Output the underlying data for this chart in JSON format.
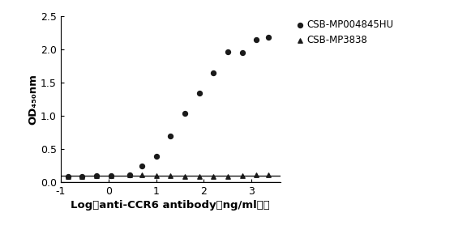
{
  "title": "",
  "xlabel": "Log（anti-CCR6 antibody（ng/ml））",
  "ylabel": "OD₄₅₀nm",
  "xlim": [
    -1,
    3.6
  ],
  "ylim": [
    0,
    2.5
  ],
  "xticks": [
    -1,
    0,
    1,
    2,
    3
  ],
  "yticks": [
    0.0,
    0.5,
    1.0,
    1.5,
    2.0,
    2.5
  ],
  "xticklabels": [
    "-1",
    "0",
    "1",
    "2",
    "3"
  ],
  "series1_name": "CSB-MP004845HU",
  "series2_name": "CSB-MP3838",
  "series1_x": [
    -0.85,
    -0.55,
    -0.25,
    0.05,
    0.45,
    0.7,
    1.0,
    1.3,
    1.6,
    1.9,
    2.2,
    2.5,
    2.8,
    3.1,
    3.35
  ],
  "series1_y": [
    0.09,
    0.09,
    0.1,
    0.1,
    0.12,
    0.25,
    0.39,
    0.7,
    1.04,
    1.35,
    1.65,
    1.97,
    1.96,
    2.15,
    2.18
  ],
  "series2_x": [
    -0.85,
    -0.55,
    -0.25,
    0.05,
    0.45,
    0.7,
    1.0,
    1.3,
    1.6,
    1.9,
    2.2,
    2.5,
    2.8,
    3.1,
    3.35
  ],
  "series2_y": [
    0.09,
    0.09,
    0.1,
    0.1,
    0.11,
    0.11,
    0.1,
    0.1,
    0.09,
    0.09,
    0.09,
    0.09,
    0.1,
    0.11,
    0.12
  ],
  "line_color": "#1a1a1a",
  "marker_color": "#1a1a1a",
  "background_color": "#ffffff",
  "legend_fontsize": 8.5,
  "axis_label_fontsize": 9.5,
  "tick_fontsize": 9
}
